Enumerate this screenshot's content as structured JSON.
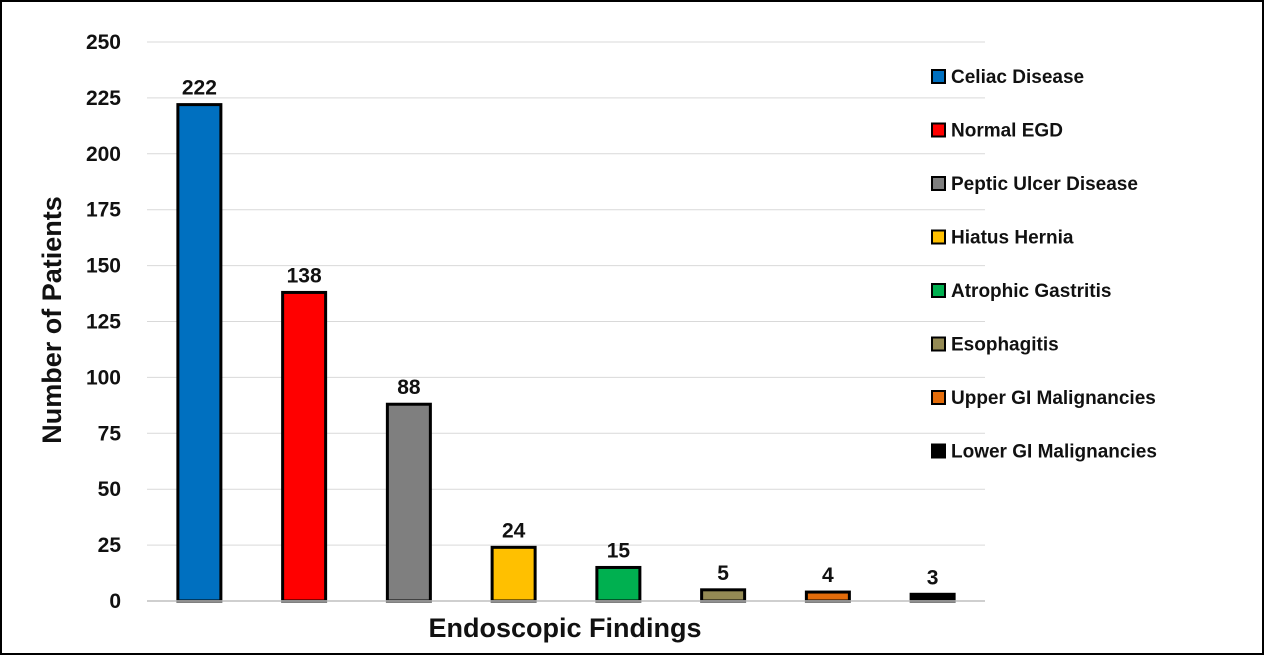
{
  "chart_data": {
    "type": "bar",
    "title": "",
    "xlabel": "Endoscopic Findings",
    "ylabel": "Number of Patients",
    "ylim": [
      0,
      250
    ],
    "yticks": [
      0,
      25,
      50,
      75,
      100,
      125,
      150,
      175,
      200,
      225,
      250
    ],
    "grid": true,
    "legend_position": "right",
    "categories": [
      "Celiac Disease",
      "Normal EGD",
      "Peptic Ulcer Disease",
      "Hiatus Hernia",
      "Atrophic Gastritis",
      "Esophagitis",
      "Upper GI Malignancies",
      "Lower GI Malignancies"
    ],
    "values": [
      222,
      138,
      88,
      24,
      15,
      5,
      4,
      3
    ],
    "colors": [
      "#0070C0",
      "#FF0000",
      "#7F7F7F",
      "#FFC000",
      "#00B050",
      "#948A54",
      "#E46C0A",
      "#000000"
    ]
  }
}
